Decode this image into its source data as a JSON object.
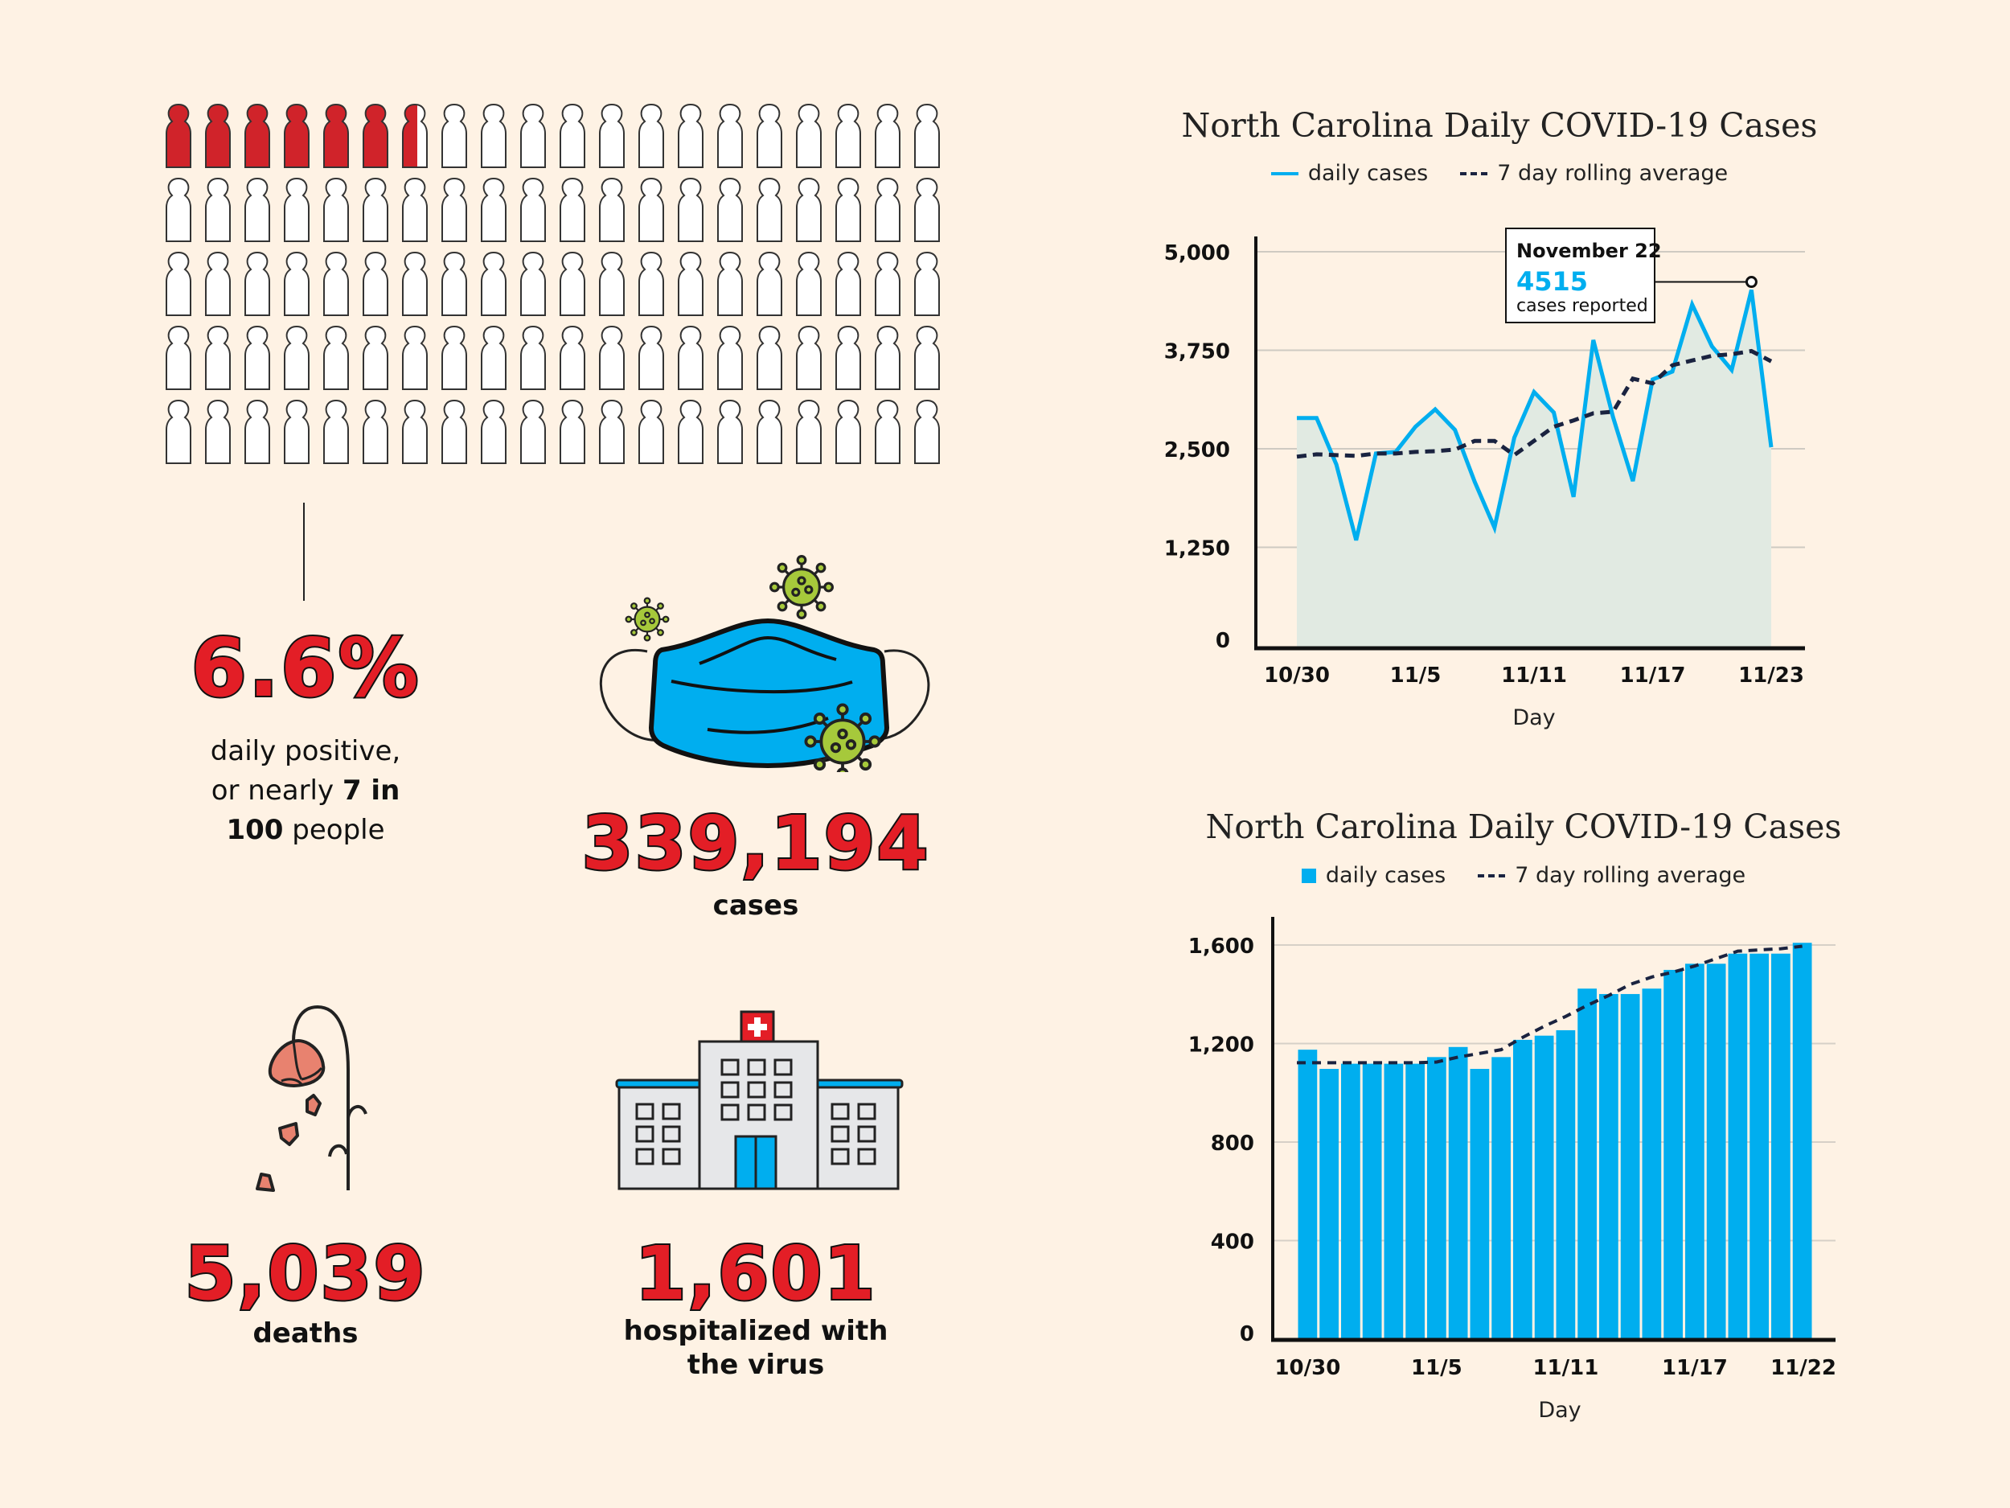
{
  "people_grid": {
    "total": 100,
    "columns": 20,
    "rows": 5,
    "filled": 6.6,
    "filled_color": "#d0232a",
    "empty_color": "#ffffff"
  },
  "stats": {
    "positive": {
      "value": "6.6%",
      "label_line1": "daily positive,",
      "label_line2_plain": "or nearly ",
      "label_line2_bold": "7 in",
      "label_line3_bold": "100",
      "label_line3_plain": " people"
    },
    "cases": {
      "value": "339,194",
      "label": "cases"
    },
    "deaths": {
      "value": "5,039",
      "label": "deaths"
    },
    "hospitalized": {
      "value": "1,601",
      "label_line1": "hospitalized with",
      "label_line2": "the virus"
    }
  },
  "icons": {
    "mask": "face-mask-icon",
    "virus": "virus-icon",
    "flower": "wilting-flower-icon",
    "hospital": "hospital-icon"
  },
  "colors": {
    "background": "#fef2e4",
    "accent_red": "#e31e26",
    "line_blue": "#00aeef",
    "avg_dark": "#1a2340",
    "area_fill": "#e1eae2",
    "virus_green": "#a6c93b"
  },
  "chart_data": [
    {
      "type": "line",
      "title": "North Carolina Daily COVID-19 Cases",
      "legend": [
        "daily cases",
        "7 day rolling average"
      ],
      "legend_placement": "top-center",
      "xlabel": "Day",
      "ylabel": "",
      "ylim": [
        0,
        5000
      ],
      "yticks": [
        0,
        1250,
        2500,
        3750,
        5000
      ],
      "ytick_labels": [
        "0",
        "1,250",
        "2,500",
        "3,750",
        "5,000"
      ],
      "xtick_labels": [
        "10/30",
        "11/5",
        "11/11",
        "11/17",
        "11/23"
      ],
      "xtick_index": [
        0,
        6,
        12,
        18,
        24
      ],
      "x": [
        "10/30",
        "10/31",
        "11/1",
        "11/2",
        "11/3",
        "11/4",
        "11/5",
        "11/6",
        "11/7",
        "11/8",
        "11/9",
        "11/10",
        "11/11",
        "11/12",
        "11/13",
        "11/14",
        "11/15",
        "11/16",
        "11/17",
        "11/18",
        "11/19",
        "11/20",
        "11/21",
        "11/22",
        "11/23"
      ],
      "grid": true,
      "series": [
        {
          "name": "daily cases",
          "values": [
            2890,
            2890,
            2300,
            1340,
            2440,
            2460,
            2780,
            3000,
            2740,
            2080,
            1500,
            2640,
            3220,
            2960,
            1890,
            3880,
            2900,
            2090,
            3380,
            3480,
            4330,
            3800,
            3500,
            4515,
            2520
          ]
        },
        {
          "name": "7 day rolling average",
          "values": [
            2400,
            2430,
            2420,
            2410,
            2440,
            2440,
            2460,
            2470,
            2490,
            2600,
            2600,
            2420,
            2600,
            2780,
            2860,
            2950,
            2970,
            3390,
            3330,
            3560,
            3620,
            3680,
            3700,
            3740,
            3610
          ]
        }
      ],
      "annotation": {
        "title": "November 22",
        "value": "4515",
        "caption": "cases reported",
        "point_index": 23
      }
    },
    {
      "type": "bar",
      "title": "North Carolina Daily COVID-19 Cases",
      "legend": [
        "daily cases",
        "7 day rolling average"
      ],
      "legend_placement": "top-center",
      "xlabel": "Day",
      "ylabel": "",
      "ylim": [
        0,
        1650
      ],
      "yticks": [
        0,
        400,
        800,
        1200,
        1600
      ],
      "ytick_labels": [
        "0",
        "400",
        "800",
        "1,200",
        "1,600"
      ],
      "xtick_labels": [
        "10/30",
        "11/5",
        "11/11",
        "11/17",
        "11/22"
      ],
      "xtick_index": [
        0,
        6,
        12,
        18,
        23
      ],
      "categories": [
        "10/30",
        "10/31",
        "11/1",
        "11/2",
        "11/3",
        "11/4",
        "11/5",
        "11/6",
        "11/7",
        "11/8",
        "11/9",
        "11/10",
        "11/11",
        "11/12",
        "11/13",
        "11/14",
        "11/15",
        "11/16",
        "11/17",
        "11/18",
        "11/19",
        "11/20",
        "11/21",
        "11/22"
      ],
      "grid": true,
      "series": [
        {
          "name": "daily cases",
          "values": [
            1175,
            1097,
            1118,
            1118,
            1118,
            1118,
            1145,
            1186,
            1097,
            1145,
            1215,
            1232,
            1254,
            1423,
            1401,
            1401,
            1423,
            1499,
            1524,
            1524,
            1565,
            1565,
            1565,
            1609
          ]
        },
        {
          "name": "7 day rolling average",
          "values": [
            1122,
            1122,
            1122,
            1122,
            1122,
            1122,
            1125,
            1145,
            1160,
            1175,
            1225,
            1270,
            1310,
            1355,
            1395,
            1440,
            1470,
            1490,
            1515,
            1545,
            1575,
            1580,
            1585,
            1595
          ]
        }
      ]
    }
  ]
}
